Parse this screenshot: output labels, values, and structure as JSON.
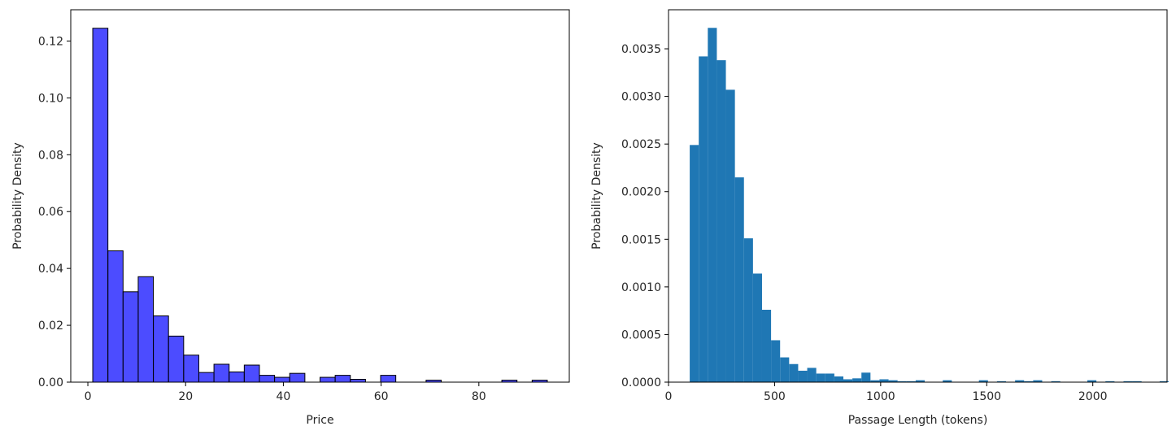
{
  "chart_data": [
    {
      "type": "bar",
      "subtype": "histogram",
      "xlabel": "Price",
      "ylabel": "Probability Density",
      "xlim": [
        -3.5,
        98.5
      ],
      "ylim": [
        0,
        0.131
      ],
      "xticks": [
        0,
        20,
        40,
        60,
        80
      ],
      "xtick_labels": [
        "0",
        "20",
        "40",
        "60",
        "80"
      ],
      "yticks": [
        0.0,
        0.02,
        0.04,
        0.06,
        0.08,
        0.1,
        0.12
      ],
      "ytick_labels": [
        "0.00",
        "0.02",
        "0.04",
        "0.06",
        "0.08",
        "0.10",
        "0.12"
      ],
      "grid": false,
      "bar_color": "#0000ff",
      "bar_opacity": 0.7,
      "edge_color": "#000000",
      "bin_width": 3.1,
      "bin_starts": [
        1.0,
        4.1,
        7.2,
        10.3,
        13.4,
        16.5,
        19.6,
        22.7,
        25.8,
        28.9,
        32.0,
        35.1,
        38.2,
        41.3,
        44.4,
        47.5,
        50.6,
        53.7,
        56.8,
        59.9,
        63.0,
        66.1,
        69.2,
        72.3,
        75.4,
        78.5,
        81.6,
        84.7,
        87.8,
        90.9
      ],
      "values": [
        0.1245,
        0.0462,
        0.0318,
        0.0371,
        0.0233,
        0.0162,
        0.0095,
        0.0034,
        0.0063,
        0.0036,
        0.006,
        0.0024,
        0.0017,
        0.0031,
        0.0,
        0.0017,
        0.0024,
        0.001,
        0.0,
        0.0024,
        0.0,
        0.0,
        0.0007,
        0.0,
        0.0,
        0.0,
        0.0,
        0.0007,
        0.0,
        0.0007
      ]
    },
    {
      "type": "bar",
      "subtype": "histogram",
      "xlabel": "Passage Length (tokens)",
      "ylabel": "Probability Density",
      "xlim": [
        0,
        2350
      ],
      "ylim": [
        0,
        0.00391
      ],
      "xticks": [
        0,
        500,
        1000,
        1500,
        2000
      ],
      "xtick_labels": [
        "0",
        "500",
        "1000",
        "1500",
        "2000"
      ],
      "yticks": [
        0.0,
        0.0005,
        0.001,
        0.0015,
        0.002,
        0.0025,
        0.003,
        0.0035
      ],
      "ytick_labels": [
        "0.0000",
        "0.0005",
        "0.0010",
        "0.0015",
        "0.0020",
        "0.0025",
        "0.0030",
        "0.0035"
      ],
      "grid": false,
      "bar_color": "#1f77b4",
      "bin_start": 100,
      "bin_width": 42.6,
      "values": [
        0.00249,
        0.00342,
        0.00372,
        0.00338,
        0.00307,
        0.00215,
        0.00151,
        0.00114,
        0.00076,
        0.00044,
        0.00026,
        0.00019,
        0.00012,
        0.00015,
        9e-05,
        9e-05,
        6e-05,
        3e-05,
        4e-05,
        0.0001,
        2e-05,
        3e-05,
        2e-05,
        1e-05,
        1e-05,
        2e-05,
        0.0,
        0.0,
        2e-05,
        0.0,
        0.0,
        0.0,
        2e-05,
        0.0,
        1e-05,
        0.0,
        2e-05,
        1e-05,
        2e-05,
        0.0,
        1e-05,
        0.0,
        0.0,
        0.0,
        2e-05,
        0.0,
        1e-05,
        0.0,
        1e-05,
        1e-05,
        0.0,
        0.0,
        1e-05
      ]
    }
  ]
}
